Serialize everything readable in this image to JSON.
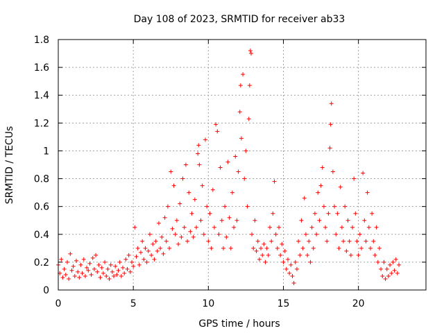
{
  "chart_data": {
    "type": "scatter",
    "title": "Day 108 of 2023, SRMTID for receiver ab33",
    "xlabel": "GPS time / hours",
    "ylabel": "SRMTID / TECUs",
    "xlim": [
      0,
      24.5
    ],
    "ylim": [
      0,
      1.8
    ],
    "x_ticks": [
      0,
      5,
      10,
      15,
      20
    ],
    "x_tick_labels": [
      "0",
      "5",
      "10",
      "15",
      "20"
    ],
    "y_ticks": [
      0,
      0.2,
      0.4,
      0.6,
      0.8,
      1.0,
      1.2,
      1.4,
      1.6,
      1.8
    ],
    "y_tick_labels": [
      "0",
      "0.2",
      "0.4",
      "0.6",
      "0.8",
      "1",
      "1.2",
      "1.4",
      "1.6",
      "1.8"
    ],
    "grid": true,
    "marker": "+",
    "series": [
      {
        "name": "SRMTID",
        "color": "#ff0000",
        "points": [
          [
            0.0,
            0.18
          ],
          [
            0.1,
            0.12
          ],
          [
            0.2,
            0.22
          ],
          [
            0.3,
            0.09
          ],
          [
            0.4,
            0.15
          ],
          [
            0.5,
            0.11
          ],
          [
            0.6,
            0.2
          ],
          [
            0.7,
            0.08
          ],
          [
            0.8,
            0.26
          ],
          [
            0.9,
            0.14
          ],
          [
            1.0,
            0.17
          ],
          [
            1.1,
            0.1
          ],
          [
            1.2,
            0.21
          ],
          [
            1.3,
            0.13
          ],
          [
            1.4,
            0.09
          ],
          [
            1.5,
            0.18
          ],
          [
            1.6,
            0.12
          ],
          [
            1.7,
            0.22
          ],
          [
            1.8,
            0.1
          ],
          [
            1.9,
            0.16
          ],
          [
            2.0,
            0.14
          ],
          [
            2.1,
            0.19
          ],
          [
            2.2,
            0.11
          ],
          [
            2.3,
            0.23
          ],
          [
            2.4,
            0.15
          ],
          [
            2.5,
            0.25
          ],
          [
            2.6,
            0.13
          ],
          [
            2.7,
            0.18
          ],
          [
            2.8,
            0.09
          ],
          [
            2.9,
            0.16
          ],
          [
            3.0,
            0.12
          ],
          [
            3.1,
            0.2
          ],
          [
            3.2,
            0.1
          ],
          [
            3.3,
            0.15
          ],
          [
            3.4,
            0.08
          ],
          [
            3.5,
            0.18
          ],
          [
            3.6,
            0.13
          ],
          [
            3.7,
            0.1
          ],
          [
            3.8,
            0.17
          ],
          [
            3.9,
            0.11
          ],
          [
            4.0,
            0.14
          ],
          [
            4.1,
            0.2
          ],
          [
            4.2,
            0.1
          ],
          [
            4.3,
            0.16
          ],
          [
            4.4,
            0.12
          ],
          [
            4.5,
            0.22
          ],
          [
            4.6,
            0.15
          ],
          [
            4.7,
            0.25
          ],
          [
            4.8,
            0.13
          ],
          [
            4.9,
            0.2
          ],
          [
            5.0,
            0.17
          ],
          [
            5.1,
            0.45
          ],
          [
            5.2,
            0.24
          ],
          [
            5.3,
            0.3
          ],
          [
            5.4,
            0.18
          ],
          [
            5.5,
            0.27
          ],
          [
            5.6,
            0.35
          ],
          [
            5.7,
            0.22
          ],
          [
            5.8,
            0.3
          ],
          [
            5.9,
            0.2
          ],
          [
            6.0,
            0.28
          ],
          [
            6.1,
            0.4
          ],
          [
            6.2,
            0.25
          ],
          [
            6.3,
            0.33
          ],
          [
            6.4,
            0.22
          ],
          [
            6.5,
            0.35
          ],
          [
            6.6,
            0.28
          ],
          [
            6.7,
            0.48
          ],
          [
            6.8,
            0.3
          ],
          [
            6.9,
            0.38
          ],
          [
            7.0,
            0.26
          ],
          [
            7.1,
            0.52
          ],
          [
            7.2,
            0.35
          ],
          [
            7.3,
            0.6
          ],
          [
            7.4,
            0.3
          ],
          [
            7.5,
            0.85
          ],
          [
            7.6,
            0.44
          ],
          [
            7.7,
            0.75
          ],
          [
            7.8,
            0.4
          ],
          [
            7.9,
            0.5
          ],
          [
            8.0,
            0.33
          ],
          [
            8.1,
            0.62
          ],
          [
            8.2,
            0.38
          ],
          [
            8.3,
            0.8
          ],
          [
            8.4,
            0.45
          ],
          [
            8.5,
            0.9
          ],
          [
            8.6,
            0.35
          ],
          [
            8.7,
            0.7
          ],
          [
            8.8,
            0.42
          ],
          [
            8.9,
            0.55
          ],
          [
            9.0,
            0.38
          ],
          [
            9.1,
            0.65
          ],
          [
            9.2,
            0.45
          ],
          [
            9.3,
            0.98
          ],
          [
            9.35,
            1.04
          ],
          [
            9.4,
            0.9
          ],
          [
            9.5,
            0.5
          ],
          [
            9.6,
            0.75
          ],
          [
            9.7,
            0.4
          ],
          [
            9.8,
            1.08
          ],
          [
            9.9,
            0.6
          ],
          [
            10.0,
            0.35
          ],
          [
            10.1,
            0.55
          ],
          [
            10.2,
            0.3
          ],
          [
            10.3,
            0.72
          ],
          [
            10.4,
            0.45
          ],
          [
            10.5,
            1.19
          ],
          [
            10.6,
            1.14
          ],
          [
            10.7,
            0.4
          ],
          [
            10.8,
            0.88
          ],
          [
            10.9,
            0.5
          ],
          [
            11.0,
            0.3
          ],
          [
            11.1,
            0.6
          ],
          [
            11.2,
            0.38
          ],
          [
            11.3,
            0.92
          ],
          [
            11.4,
            0.52
          ],
          [
            11.5,
            0.3
          ],
          [
            11.6,
            0.7
          ],
          [
            11.7,
            0.45
          ],
          [
            11.8,
            0.96
          ],
          [
            11.9,
            0.5
          ],
          [
            12.0,
            0.85
          ],
          [
            12.1,
            1.28
          ],
          [
            12.15,
            1.47
          ],
          [
            12.2,
            1.09
          ],
          [
            12.3,
            1.55
          ],
          [
            12.4,
            0.8
          ],
          [
            12.5,
            1.0
          ],
          [
            12.6,
            0.6
          ],
          [
            12.7,
            1.23
          ],
          [
            12.75,
            1.47
          ],
          [
            12.8,
            1.72
          ],
          [
            12.85,
            1.7
          ],
          [
            12.9,
            0.4
          ],
          [
            13.0,
            0.3
          ],
          [
            13.1,
            0.5
          ],
          [
            13.2,
            0.28
          ],
          [
            13.3,
            0.35
          ],
          [
            13.4,
            0.22
          ],
          [
            13.5,
            0.3
          ],
          [
            13.6,
            0.25
          ],
          [
            13.7,
            0.33
          ],
          [
            13.8,
            0.2
          ],
          [
            13.9,
            0.3
          ],
          [
            14.0,
            0.25
          ],
          [
            14.1,
            0.45
          ],
          [
            14.2,
            0.35
          ],
          [
            14.3,
            0.55
          ],
          [
            14.4,
            0.78
          ],
          [
            14.5,
            0.4
          ],
          [
            14.6,
            0.3
          ],
          [
            14.7,
            0.45
          ],
          [
            14.8,
            0.25
          ],
          [
            14.9,
            0.33
          ],
          [
            15.0,
            0.2
          ],
          [
            15.1,
            0.28
          ],
          [
            15.2,
            0.15
          ],
          [
            15.3,
            0.22
          ],
          [
            15.4,
            0.12
          ],
          [
            15.5,
            0.18
          ],
          [
            15.6,
            0.1
          ],
          [
            15.7,
            0.05
          ],
          [
            15.8,
            0.2
          ],
          [
            15.9,
            0.15
          ],
          [
            16.0,
            0.35
          ],
          [
            16.1,
            0.25
          ],
          [
            16.2,
            0.5
          ],
          [
            16.3,
            0.3
          ],
          [
            16.4,
            0.66
          ],
          [
            16.5,
            0.4
          ],
          [
            16.6,
            0.25
          ],
          [
            16.7,
            0.35
          ],
          [
            16.8,
            0.2
          ],
          [
            16.9,
            0.45
          ],
          [
            17.0,
            0.3
          ],
          [
            17.1,
            0.55
          ],
          [
            17.2,
            0.4
          ],
          [
            17.3,
            0.7
          ],
          [
            17.4,
            0.5
          ],
          [
            17.5,
            0.75
          ],
          [
            17.6,
            0.88
          ],
          [
            17.7,
            0.6
          ],
          [
            17.8,
            0.45
          ],
          [
            17.9,
            0.35
          ],
          [
            18.0,
            0.55
          ],
          [
            18.1,
            1.02
          ],
          [
            18.15,
            1.19
          ],
          [
            18.2,
            1.34
          ],
          [
            18.3,
            0.85
          ],
          [
            18.4,
            0.6
          ],
          [
            18.5,
            0.4
          ],
          [
            18.6,
            0.55
          ],
          [
            18.7,
            0.3
          ],
          [
            18.8,
            0.74
          ],
          [
            18.9,
            0.45
          ],
          [
            19.0,
            0.35
          ],
          [
            19.1,
            0.6
          ],
          [
            19.2,
            0.28
          ],
          [
            19.3,
            0.5
          ],
          [
            19.4,
            0.35
          ],
          [
            19.5,
            0.25
          ],
          [
            19.6,
            0.45
          ],
          [
            19.7,
            0.8
          ],
          [
            19.8,
            0.55
          ],
          [
            19.9,
            0.35
          ],
          [
            20.0,
            0.25
          ],
          [
            20.1,
            0.4
          ],
          [
            20.2,
            0.3
          ],
          [
            20.3,
            0.84
          ],
          [
            20.4,
            0.5
          ],
          [
            20.5,
            0.35
          ],
          [
            20.6,
            0.7
          ],
          [
            20.7,
            0.45
          ],
          [
            20.8,
            0.3
          ],
          [
            20.9,
            0.55
          ],
          [
            21.0,
            0.35
          ],
          [
            21.1,
            0.25
          ],
          [
            21.2,
            0.45
          ],
          [
            21.3,
            0.2
          ],
          [
            21.4,
            0.3
          ],
          [
            21.5,
            0.15
          ],
          [
            21.6,
            0.1
          ],
          [
            21.7,
            0.2
          ],
          [
            21.8,
            0.08
          ],
          [
            21.9,
            0.15
          ],
          [
            22.0,
            0.1
          ],
          [
            22.1,
            0.18
          ],
          [
            22.2,
            0.12
          ],
          [
            22.3,
            0.2
          ],
          [
            22.4,
            0.14
          ],
          [
            22.5,
            0.22
          ],
          [
            22.6,
            0.12
          ],
          [
            22.7,
            0.18
          ]
        ]
      }
    ]
  }
}
